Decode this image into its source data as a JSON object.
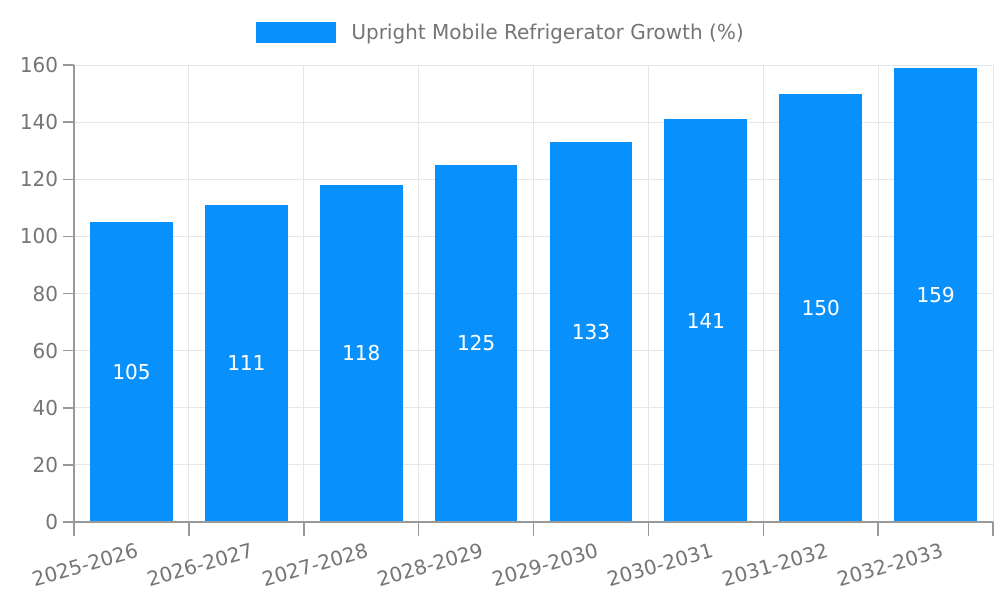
{
  "legend": {
    "label": "Upright Mobile Refrigerator Growth (%)"
  },
  "chart_data": {
    "type": "bar",
    "title": "",
    "xlabel": "",
    "ylabel": "",
    "categories": [
      "2025-2026",
      "2026-2027",
      "2027-2028",
      "2028-2029",
      "2029-2030",
      "2030-2031",
      "2031-2032",
      "2032-2033"
    ],
    "values": [
      105,
      111,
      118,
      125,
      133,
      141,
      150,
      159
    ],
    "value_labels": [
      "105",
      "111",
      "118",
      "125",
      "133",
      "141",
      "150",
      "159"
    ],
    "ylim": [
      0,
      160
    ],
    "yticks": [
      0,
      20,
      40,
      60,
      80,
      100,
      120,
      140,
      160
    ],
    "legend_entries": [
      "Upright Mobile Refrigerator Growth (%)"
    ],
    "legend_position": "top-center",
    "grid": true,
    "bar_color": "#0890FC",
    "bar_label_color": "#FFFFFF",
    "axis_text_color": "#757575",
    "axis_line_color": "#999999",
    "grid_line_color": "#E6E6E6",
    "background_color": "#FFFFFF"
  }
}
